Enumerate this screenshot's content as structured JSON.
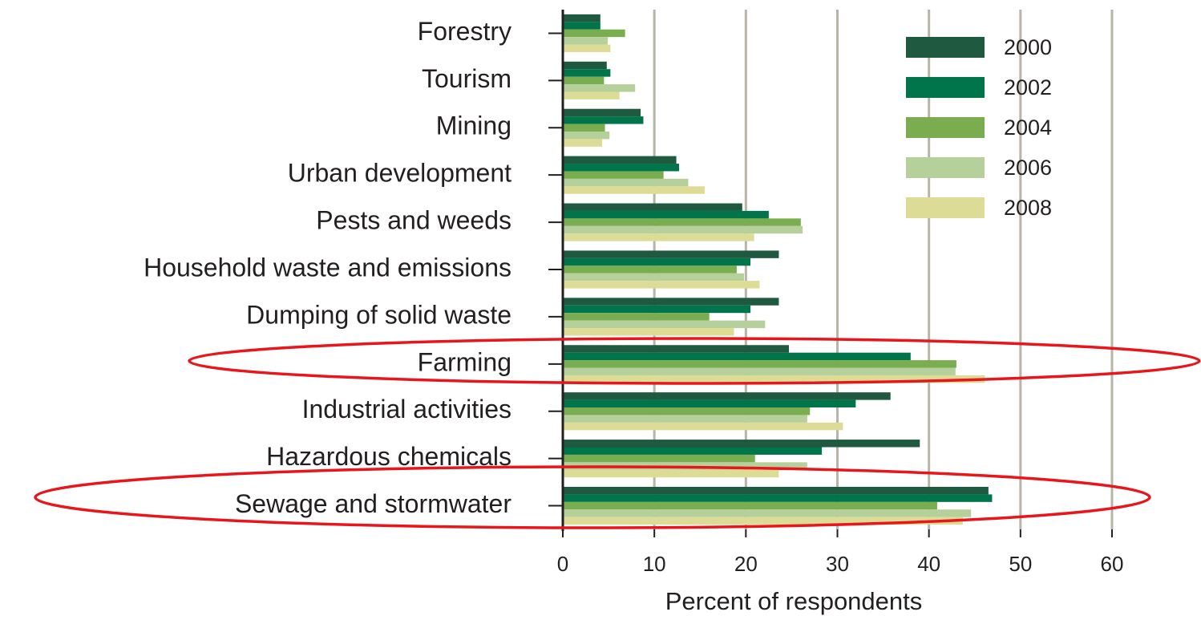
{
  "chart_data": {
    "type": "bar",
    "orientation": "horizontal",
    "xlabel": "Percent of respondents",
    "categories": [
      "Forestry",
      "Tourism",
      "Mining",
      "Urban development",
      "Pests and weeds",
      "Household waste and emissions",
      "Dumping of solid waste",
      "Farming",
      "Industrial activities",
      "Hazardous chemicals",
      "Sewage and stormwater"
    ],
    "series": [
      {
        "name": "2000",
        "color": "#1f5a40",
        "values": [
          4.1,
          4.8,
          8.5,
          12.4,
          19.6,
          23.6,
          23.6,
          24.7,
          35.8,
          39,
          46.5
        ]
      },
      {
        "name": "2002",
        "color": "#00744a",
        "values": [
          4.1,
          5.2,
          8.8,
          12.7,
          22.5,
          20.5,
          20.5,
          38.0,
          32.0,
          28.3,
          46.9
        ]
      },
      {
        "name": "2004",
        "color": "#7aac50",
        "values": [
          6.8,
          4.5,
          4.6,
          11.0,
          26.0,
          19.0,
          16.0,
          43.0,
          27.0,
          21.0,
          40.9
        ]
      },
      {
        "name": "2006",
        "color": "#b5d09a",
        "values": [
          4.9,
          7.9,
          5.1,
          13.7,
          26.2,
          19.8,
          22.1,
          42.9,
          26.7,
          26.7,
          44.6
        ]
      },
      {
        "name": "2008",
        "color": "#dcdc96",
        "values": [
          5.2,
          6.2,
          4.3,
          15.5,
          20.9,
          21.5,
          18.7,
          46.1,
          30.6,
          23.6,
          43.7
        ]
      }
    ],
    "xlim": [
      0,
      60
    ],
    "xticks": [
      0,
      10,
      20,
      30,
      40,
      50,
      60
    ],
    "grid": true,
    "legend": "upper right"
  }
}
